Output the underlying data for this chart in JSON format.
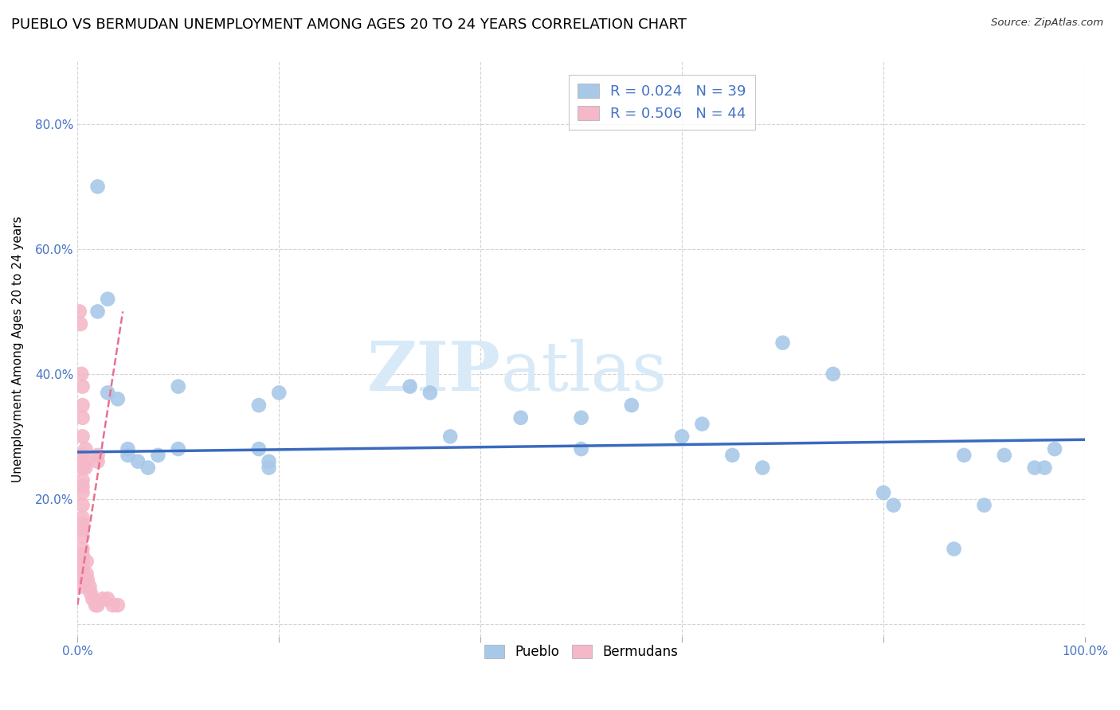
{
  "title": "PUEBLO VS BERMUDAN UNEMPLOYMENT AMONG AGES 20 TO 24 YEARS CORRELATION CHART",
  "source": "Source: ZipAtlas.com",
  "ylabel": "Unemployment Among Ages 20 to 24 years",
  "xlim": [
    0,
    100
  ],
  "ylim": [
    -2,
    90
  ],
  "xticks": [
    0,
    20,
    40,
    60,
    80,
    100
  ],
  "xticklabels": [
    "0.0%",
    "",
    "",
    "",
    "",
    "100.0%"
  ],
  "yticks": [
    0,
    20,
    40,
    60,
    80
  ],
  "yticklabels": [
    "",
    "20.0%",
    "40.0%",
    "60.0%",
    "80.0%"
  ],
  "pueblo_R": "0.024",
  "pueblo_N": "39",
  "bermuda_R": "0.506",
  "bermuda_N": "44",
  "pueblo_color": "#a8c8e8",
  "bermuda_color": "#f4b8c8",
  "pueblo_line_color": "#3a6abf",
  "bermuda_line_color": "#e87090",
  "pueblo_scatter": [
    [
      2,
      70
    ],
    [
      2,
      50
    ],
    [
      3,
      52
    ],
    [
      3,
      37
    ],
    [
      4,
      36
    ],
    [
      5,
      28
    ],
    [
      5,
      27
    ],
    [
      6,
      26
    ],
    [
      7,
      25
    ],
    [
      8,
      27
    ],
    [
      10,
      38
    ],
    [
      10,
      28
    ],
    [
      18,
      35
    ],
    [
      18,
      28
    ],
    [
      19,
      26
    ],
    [
      19,
      25
    ],
    [
      20,
      37
    ],
    [
      33,
      38
    ],
    [
      35,
      37
    ],
    [
      37,
      30
    ],
    [
      44,
      33
    ],
    [
      50,
      33
    ],
    [
      50,
      28
    ],
    [
      55,
      35
    ],
    [
      60,
      30
    ],
    [
      62,
      32
    ],
    [
      65,
      27
    ],
    [
      68,
      25
    ],
    [
      70,
      45
    ],
    [
      75,
      40
    ],
    [
      80,
      21
    ],
    [
      81,
      19
    ],
    [
      87,
      12
    ],
    [
      88,
      27
    ],
    [
      90,
      19
    ],
    [
      92,
      27
    ],
    [
      95,
      25
    ],
    [
      96,
      25
    ],
    [
      97,
      28
    ]
  ],
  "bermuda_scatter": [
    [
      0.2,
      50
    ],
    [
      0.3,
      48
    ],
    [
      0.4,
      40
    ],
    [
      0.5,
      38
    ],
    [
      0.5,
      35
    ],
    [
      0.5,
      33
    ],
    [
      0.5,
      30
    ],
    [
      0.5,
      27
    ],
    [
      0.5,
      27
    ],
    [
      0.5,
      26
    ],
    [
      0.5,
      25
    ],
    [
      0.5,
      25
    ],
    [
      0.5,
      23
    ],
    [
      0.5,
      22
    ],
    [
      0.5,
      21
    ],
    [
      0.5,
      19
    ],
    [
      0.5,
      17
    ],
    [
      0.5,
      16
    ],
    [
      0.5,
      15
    ],
    [
      0.5,
      14
    ],
    [
      0.5,
      12
    ],
    [
      0.5,
      11
    ],
    [
      0.5,
      10
    ],
    [
      0.5,
      9
    ],
    [
      0.5,
      8
    ],
    [
      0.5,
      7
    ],
    [
      0.5,
      6
    ],
    [
      0.8,
      28
    ],
    [
      0.8,
      26
    ],
    [
      0.8,
      25
    ],
    [
      0.9,
      10
    ],
    [
      0.9,
      8
    ],
    [
      1.0,
      7
    ],
    [
      1.2,
      6
    ],
    [
      1.3,
      5
    ],
    [
      1.5,
      4
    ],
    [
      1.8,
      3
    ],
    [
      2.0,
      3
    ],
    [
      2.0,
      27
    ],
    [
      2.0,
      26
    ],
    [
      2.5,
      4
    ],
    [
      3.0,
      4
    ],
    [
      3.5,
      3
    ],
    [
      4.0,
      3
    ]
  ],
  "pueblo_trend_x": [
    0,
    100
  ],
  "pueblo_trend_y": [
    27.5,
    29.5
  ],
  "bermuda_trend_x": [
    0,
    4.5
  ],
  "bermuda_trend_y": [
    3,
    50
  ],
  "watermark_line1": "ZIP",
  "watermark_line2": "atlas",
  "watermark_color": "#d8eaf8",
  "background_color": "#ffffff",
  "grid_color": "#c8c8c8",
  "title_fontsize": 13,
  "axis_label_fontsize": 11,
  "tick_fontsize": 11,
  "legend_fontsize": 13
}
